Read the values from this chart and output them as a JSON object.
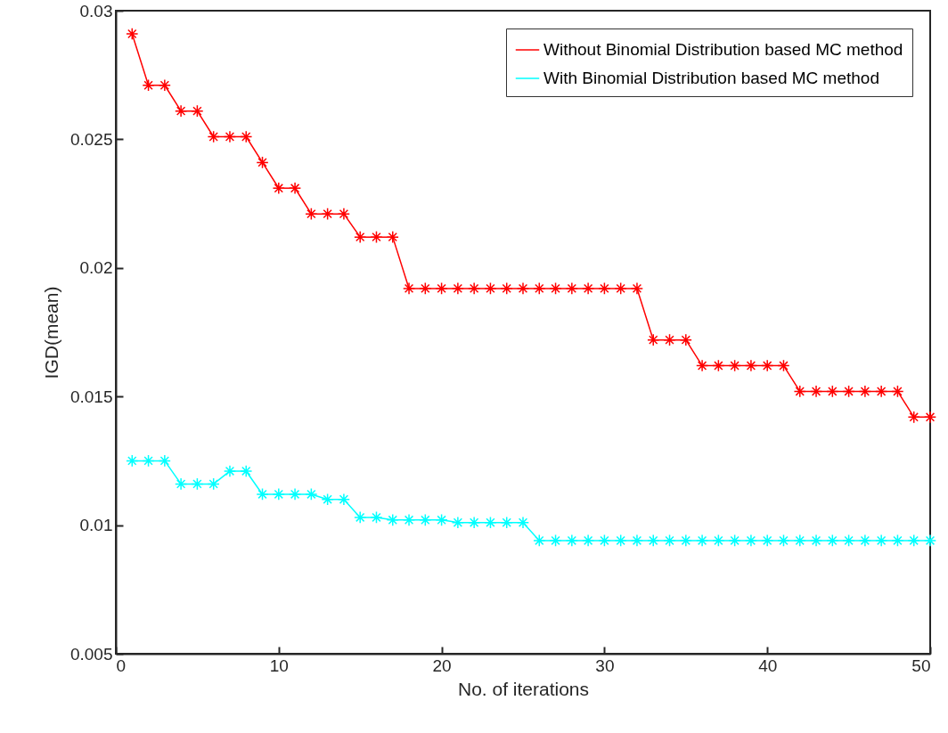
{
  "chart_data": {
    "type": "line",
    "xlabel": "No. of iterations",
    "ylabel": "IGD(mean)",
    "x": [
      1,
      2,
      3,
      4,
      5,
      6,
      7,
      8,
      9,
      10,
      11,
      12,
      13,
      14,
      15,
      16,
      17,
      18,
      19,
      20,
      21,
      22,
      23,
      24,
      25,
      26,
      27,
      28,
      29,
      30,
      31,
      32,
      33,
      34,
      35,
      36,
      37,
      38,
      39,
      40,
      41,
      42,
      43,
      44,
      45,
      46,
      47,
      48,
      49,
      50
    ],
    "series": [
      {
        "name": "Without Binomial Distribution based MC method",
        "color": "#ff0000",
        "values": [
          0.0291,
          0.0271,
          0.0271,
          0.0261,
          0.0261,
          0.0251,
          0.0251,
          0.0251,
          0.0241,
          0.0231,
          0.0231,
          0.0221,
          0.0221,
          0.0221,
          0.0212,
          0.0212,
          0.0212,
          0.0192,
          0.0192,
          0.0192,
          0.0192,
          0.0192,
          0.0192,
          0.0192,
          0.0192,
          0.0192,
          0.0192,
          0.0192,
          0.0192,
          0.0192,
          0.0192,
          0.0192,
          0.0172,
          0.0172,
          0.0172,
          0.0162,
          0.0162,
          0.0162,
          0.0162,
          0.0162,
          0.0162,
          0.0152,
          0.0152,
          0.0152,
          0.0152,
          0.0152,
          0.0152,
          0.0152,
          0.0142,
          0.0142
        ]
      },
      {
        "name": "With Binomial Distribution based MC method",
        "color": "#00ffff",
        "values": [
          0.0125,
          0.0125,
          0.0125,
          0.0116,
          0.0116,
          0.0116,
          0.0121,
          0.0121,
          0.0112,
          0.0112,
          0.0112,
          0.0112,
          0.011,
          0.011,
          0.0103,
          0.0103,
          0.0102,
          0.0102,
          0.0102,
          0.0102,
          0.0101,
          0.0101,
          0.0101,
          0.0101,
          0.0101,
          0.0094,
          0.0094,
          0.0094,
          0.0094,
          0.0094,
          0.0094,
          0.0094,
          0.0094,
          0.0094,
          0.0094,
          0.0094,
          0.0094,
          0.0094,
          0.0094,
          0.0094,
          0.0094,
          0.0094,
          0.0094,
          0.0094,
          0.0094,
          0.0094,
          0.0094,
          0.0094,
          0.0094,
          0.0094
        ]
      }
    ],
    "xlim": [
      0,
      50
    ],
    "xticks": [
      0,
      10,
      20,
      30,
      40,
      50
    ],
    "ylim": [
      0.005,
      0.03
    ],
    "yticks": [
      0.005,
      0.01,
      0.015,
      0.02,
      0.025,
      0.03
    ],
    "grid": false,
    "legend": "top right",
    "marker": "cross",
    "line_style": "solid"
  }
}
